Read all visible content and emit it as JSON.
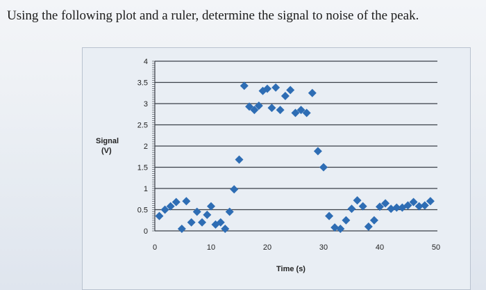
{
  "question": "Using the following plot and a ruler, determine the signal to noise of the peak.",
  "chart_data": {
    "type": "scatter",
    "xlabel": "Time (s)",
    "ylabel_line1": "Signal",
    "ylabel_line2": "(V)",
    "xlim": [
      0,
      50
    ],
    "ylim": [
      0,
      4
    ],
    "x_ticks": [
      "0",
      "10",
      "20",
      "30",
      "40",
      "50"
    ],
    "y_ticks": [
      "0",
      "0.5",
      "1",
      "1.5",
      "2",
      "2.5",
      "3",
      "3.5",
      "4"
    ],
    "grid": "horizontal",
    "marker_color": "#2e6db4",
    "x": [
      0.8,
      1.8,
      2.8,
      3.8,
      4.8,
      5.6,
      6.5,
      7.5,
      8.4,
      9.3,
      10.0,
      10.8,
      11.7,
      12.5,
      13.3,
      14.1,
      15.0,
      15.9,
      16.8,
      17.7,
      18.5,
      19.2,
      20.0,
      20.8,
      21.5,
      22.3,
      23.2,
      24.1,
      25.0,
      26.0,
      27.0,
      28.0,
      29.0,
      30.0,
      31.0,
      32.0,
      33.0,
      34.0,
      35.0,
      36.0,
      37.0,
      38.0,
      39.0,
      40.0,
      41.0,
      42.0,
      43.0,
      44.0,
      45.0,
      46.0,
      47.0,
      48.0,
      49.0
    ],
    "y": [
      0.35,
      0.5,
      0.58,
      0.68,
      0.05,
      0.7,
      0.2,
      0.45,
      0.2,
      0.38,
      0.58,
      0.15,
      0.2,
      0.05,
      0.45,
      0.98,
      1.68,
      3.42,
      2.93,
      2.85,
      2.95,
      3.3,
      3.35,
      2.9,
      3.38,
      2.85,
      3.18,
      3.32,
      2.78,
      2.85,
      2.78,
      3.25,
      1.88,
      1.5,
      0.35,
      0.08,
      0.05,
      0.25,
      0.52,
      0.72,
      0.58,
      0.1,
      0.25,
      0.57,
      0.65,
      0.52,
      0.55,
      0.55,
      0.6,
      0.68,
      0.58,
      0.6,
      0.7
    ]
  }
}
